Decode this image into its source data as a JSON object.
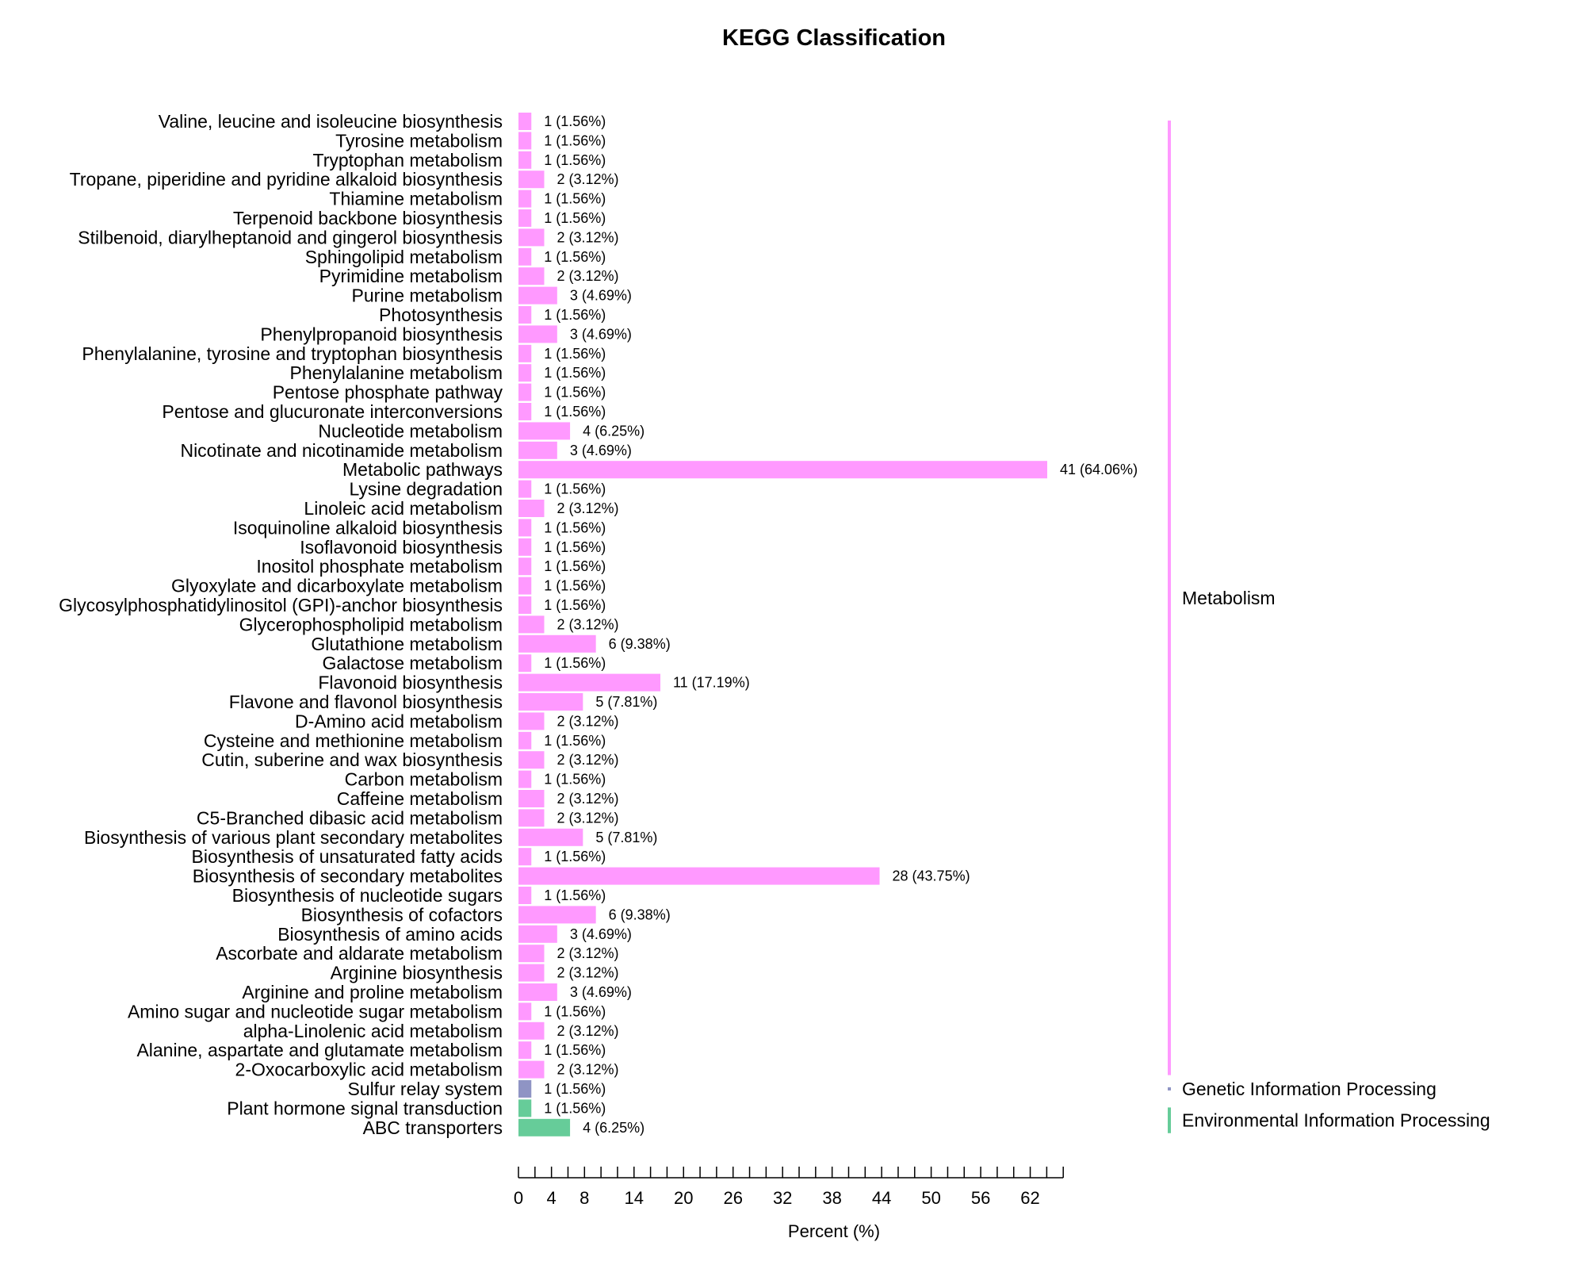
{
  "chart_data": {
    "type": "bar",
    "orientation": "horizontal",
    "title": "KEGG Classification",
    "xlabel": "Percent (%)",
    "ylabel": "",
    "xlim": [
      0,
      66
    ],
    "x_tick_values": [
      0,
      2,
      4,
      6,
      8,
      10,
      12,
      14,
      16,
      18,
      20,
      22,
      24,
      26,
      28,
      30,
      32,
      34,
      36,
      38,
      40,
      42,
      44,
      46,
      48,
      50,
      52,
      54,
      56,
      58,
      60,
      62,
      64,
      66
    ],
    "x_tick_labels": [
      "0",
      "4",
      "8",
      "14",
      "20",
      "26",
      "32",
      "38",
      "44",
      "50",
      "56",
      "62"
    ],
    "x_tick_label_values": [
      0,
      4,
      8,
      14,
      20,
      26,
      32,
      38,
      44,
      50,
      56,
      62
    ],
    "colors": {
      "Metabolism": "#ff99ff",
      "Genetic Information Processing": "#8f94c4",
      "Environmental Information Processing": "#66cc99"
    },
    "groups": [
      {
        "name": "Metabolism",
        "color": "#ff99ff"
      },
      {
        "name": "Genetic Information Processing",
        "color": "#8f94c4"
      },
      {
        "name": "Environmental Information Processing",
        "color": "#66cc99"
      }
    ],
    "categories": [
      {
        "name": "Valine, leucine and isoleucine biosynthesis",
        "count": 1,
        "percent": 1.56,
        "label": "1 (1.56%)",
        "group": "Metabolism"
      },
      {
        "name": "Tyrosine metabolism",
        "count": 1,
        "percent": 1.56,
        "label": "1 (1.56%)",
        "group": "Metabolism"
      },
      {
        "name": "Tryptophan metabolism",
        "count": 1,
        "percent": 1.56,
        "label": "1 (1.56%)",
        "group": "Metabolism"
      },
      {
        "name": "Tropane, piperidine and pyridine alkaloid biosynthesis",
        "count": 2,
        "percent": 3.12,
        "label": "2 (3.12%)",
        "group": "Metabolism"
      },
      {
        "name": "Thiamine metabolism",
        "count": 1,
        "percent": 1.56,
        "label": "1 (1.56%)",
        "group": "Metabolism"
      },
      {
        "name": "Terpenoid backbone biosynthesis",
        "count": 1,
        "percent": 1.56,
        "label": "1 (1.56%)",
        "group": "Metabolism"
      },
      {
        "name": "Stilbenoid, diarylheptanoid and gingerol biosynthesis",
        "count": 2,
        "percent": 3.12,
        "label": "2 (3.12%)",
        "group": "Metabolism"
      },
      {
        "name": "Sphingolipid metabolism",
        "count": 1,
        "percent": 1.56,
        "label": "1 (1.56%)",
        "group": "Metabolism"
      },
      {
        "name": "Pyrimidine metabolism",
        "count": 2,
        "percent": 3.12,
        "label": "2 (3.12%)",
        "group": "Metabolism"
      },
      {
        "name": "Purine metabolism",
        "count": 3,
        "percent": 4.69,
        "label": "3 (4.69%)",
        "group": "Metabolism"
      },
      {
        "name": "Photosynthesis",
        "count": 1,
        "percent": 1.56,
        "label": "1 (1.56%)",
        "group": "Metabolism"
      },
      {
        "name": "Phenylpropanoid biosynthesis",
        "count": 3,
        "percent": 4.69,
        "label": "3 (4.69%)",
        "group": "Metabolism"
      },
      {
        "name": "Phenylalanine, tyrosine and tryptophan biosynthesis",
        "count": 1,
        "percent": 1.56,
        "label": "1 (1.56%)",
        "group": "Metabolism"
      },
      {
        "name": "Phenylalanine metabolism",
        "count": 1,
        "percent": 1.56,
        "label": "1 (1.56%)",
        "group": "Metabolism"
      },
      {
        "name": "Pentose phosphate pathway",
        "count": 1,
        "percent": 1.56,
        "label": "1 (1.56%)",
        "group": "Metabolism"
      },
      {
        "name": "Pentose and glucuronate interconversions",
        "count": 1,
        "percent": 1.56,
        "label": "1 (1.56%)",
        "group": "Metabolism"
      },
      {
        "name": "Nucleotide metabolism",
        "count": 4,
        "percent": 6.25,
        "label": "4 (6.25%)",
        "group": "Metabolism"
      },
      {
        "name": "Nicotinate and nicotinamide metabolism",
        "count": 3,
        "percent": 4.69,
        "label": "3 (4.69%)",
        "group": "Metabolism"
      },
      {
        "name": "Metabolic pathways",
        "count": 41,
        "percent": 64.06,
        "label": "41 (64.06%)",
        "group": "Metabolism"
      },
      {
        "name": "Lysine degradation",
        "count": 1,
        "percent": 1.56,
        "label": "1 (1.56%)",
        "group": "Metabolism"
      },
      {
        "name": "Linoleic acid metabolism",
        "count": 2,
        "percent": 3.12,
        "label": "2 (3.12%)",
        "group": "Metabolism"
      },
      {
        "name": "Isoquinoline alkaloid biosynthesis",
        "count": 1,
        "percent": 1.56,
        "label": "1 (1.56%)",
        "group": "Metabolism"
      },
      {
        "name": "Isoflavonoid biosynthesis",
        "count": 1,
        "percent": 1.56,
        "label": "1 (1.56%)",
        "group": "Metabolism"
      },
      {
        "name": "Inositol phosphate metabolism",
        "count": 1,
        "percent": 1.56,
        "label": "1 (1.56%)",
        "group": "Metabolism"
      },
      {
        "name": "Glyoxylate and dicarboxylate metabolism",
        "count": 1,
        "percent": 1.56,
        "label": "1 (1.56%)",
        "group": "Metabolism"
      },
      {
        "name": "Glycosylphosphatidylinositol (GPI)-anchor biosynthesis",
        "count": 1,
        "percent": 1.56,
        "label": "1 (1.56%)",
        "group": "Metabolism"
      },
      {
        "name": "Glycerophospholipid metabolism",
        "count": 2,
        "percent": 3.12,
        "label": "2 (3.12%)",
        "group": "Metabolism"
      },
      {
        "name": "Glutathione metabolism",
        "count": 6,
        "percent": 9.38,
        "label": "6 (9.38%)",
        "group": "Metabolism"
      },
      {
        "name": "Galactose metabolism",
        "count": 1,
        "percent": 1.56,
        "label": "1 (1.56%)",
        "group": "Metabolism"
      },
      {
        "name": "Flavonoid biosynthesis",
        "count": 11,
        "percent": 17.19,
        "label": "11 (17.19%)",
        "group": "Metabolism"
      },
      {
        "name": "Flavone and flavonol biosynthesis",
        "count": 5,
        "percent": 7.81,
        "label": "5 (7.81%)",
        "group": "Metabolism"
      },
      {
        "name": "D-Amino acid metabolism",
        "count": 2,
        "percent": 3.12,
        "label": "2 (3.12%)",
        "group": "Metabolism"
      },
      {
        "name": "Cysteine and methionine metabolism",
        "count": 1,
        "percent": 1.56,
        "label": "1 (1.56%)",
        "group": "Metabolism"
      },
      {
        "name": "Cutin, suberine and wax biosynthesis",
        "count": 2,
        "percent": 3.12,
        "label": "2 (3.12%)",
        "group": "Metabolism"
      },
      {
        "name": "Carbon metabolism",
        "count": 1,
        "percent": 1.56,
        "label": "1 (1.56%)",
        "group": "Metabolism"
      },
      {
        "name": "Caffeine metabolism",
        "count": 2,
        "percent": 3.12,
        "label": "2 (3.12%)",
        "group": "Metabolism"
      },
      {
        "name": "C5-Branched dibasic acid metabolism",
        "count": 2,
        "percent": 3.12,
        "label": "2 (3.12%)",
        "group": "Metabolism"
      },
      {
        "name": "Biosynthesis of various plant secondary metabolites",
        "count": 5,
        "percent": 7.81,
        "label": "5 (7.81%)",
        "group": "Metabolism"
      },
      {
        "name": "Biosynthesis of unsaturated fatty acids",
        "count": 1,
        "percent": 1.56,
        "label": "1 (1.56%)",
        "group": "Metabolism"
      },
      {
        "name": "Biosynthesis of secondary metabolites",
        "count": 28,
        "percent": 43.75,
        "label": "28 (43.75%)",
        "group": "Metabolism"
      },
      {
        "name": "Biosynthesis of nucleotide sugars",
        "count": 1,
        "percent": 1.56,
        "label": "1 (1.56%)",
        "group": "Metabolism"
      },
      {
        "name": "Biosynthesis of cofactors",
        "count": 6,
        "percent": 9.38,
        "label": "6 (9.38%)",
        "group": "Metabolism"
      },
      {
        "name": "Biosynthesis of amino acids",
        "count": 3,
        "percent": 4.69,
        "label": "3 (4.69%)",
        "group": "Metabolism"
      },
      {
        "name": "Ascorbate and aldarate metabolism",
        "count": 2,
        "percent": 3.12,
        "label": "2 (3.12%)",
        "group": "Metabolism"
      },
      {
        "name": "Arginine biosynthesis",
        "count": 2,
        "percent": 3.12,
        "label": "2 (3.12%)",
        "group": "Metabolism"
      },
      {
        "name": "Arginine and proline metabolism",
        "count": 3,
        "percent": 4.69,
        "label": "3 (4.69%)",
        "group": "Metabolism"
      },
      {
        "name": "Amino sugar and nucleotide sugar metabolism",
        "count": 1,
        "percent": 1.56,
        "label": "1 (1.56%)",
        "group": "Metabolism"
      },
      {
        "name": "alpha-Linolenic acid metabolism",
        "count": 2,
        "percent": 3.12,
        "label": "2 (3.12%)",
        "group": "Metabolism"
      },
      {
        "name": "Alanine, aspartate and glutamate metabolism",
        "count": 1,
        "percent": 1.56,
        "label": "1 (1.56%)",
        "group": "Metabolism"
      },
      {
        "name": "2-Oxocarboxylic acid metabolism",
        "count": 2,
        "percent": 3.12,
        "label": "2 (3.12%)",
        "group": "Metabolism"
      },
      {
        "name": "Sulfur relay system",
        "count": 1,
        "percent": 1.56,
        "label": "1 (1.56%)",
        "group": "Genetic Information Processing"
      },
      {
        "name": "Plant hormone signal transduction",
        "count": 1,
        "percent": 1.56,
        "label": "1 (1.56%)",
        "group": "Environmental Information Processing"
      },
      {
        "name": "ABC transporters",
        "count": 4,
        "percent": 6.25,
        "label": "4 (6.25%)",
        "group": "Environmental Information Processing"
      }
    ]
  }
}
